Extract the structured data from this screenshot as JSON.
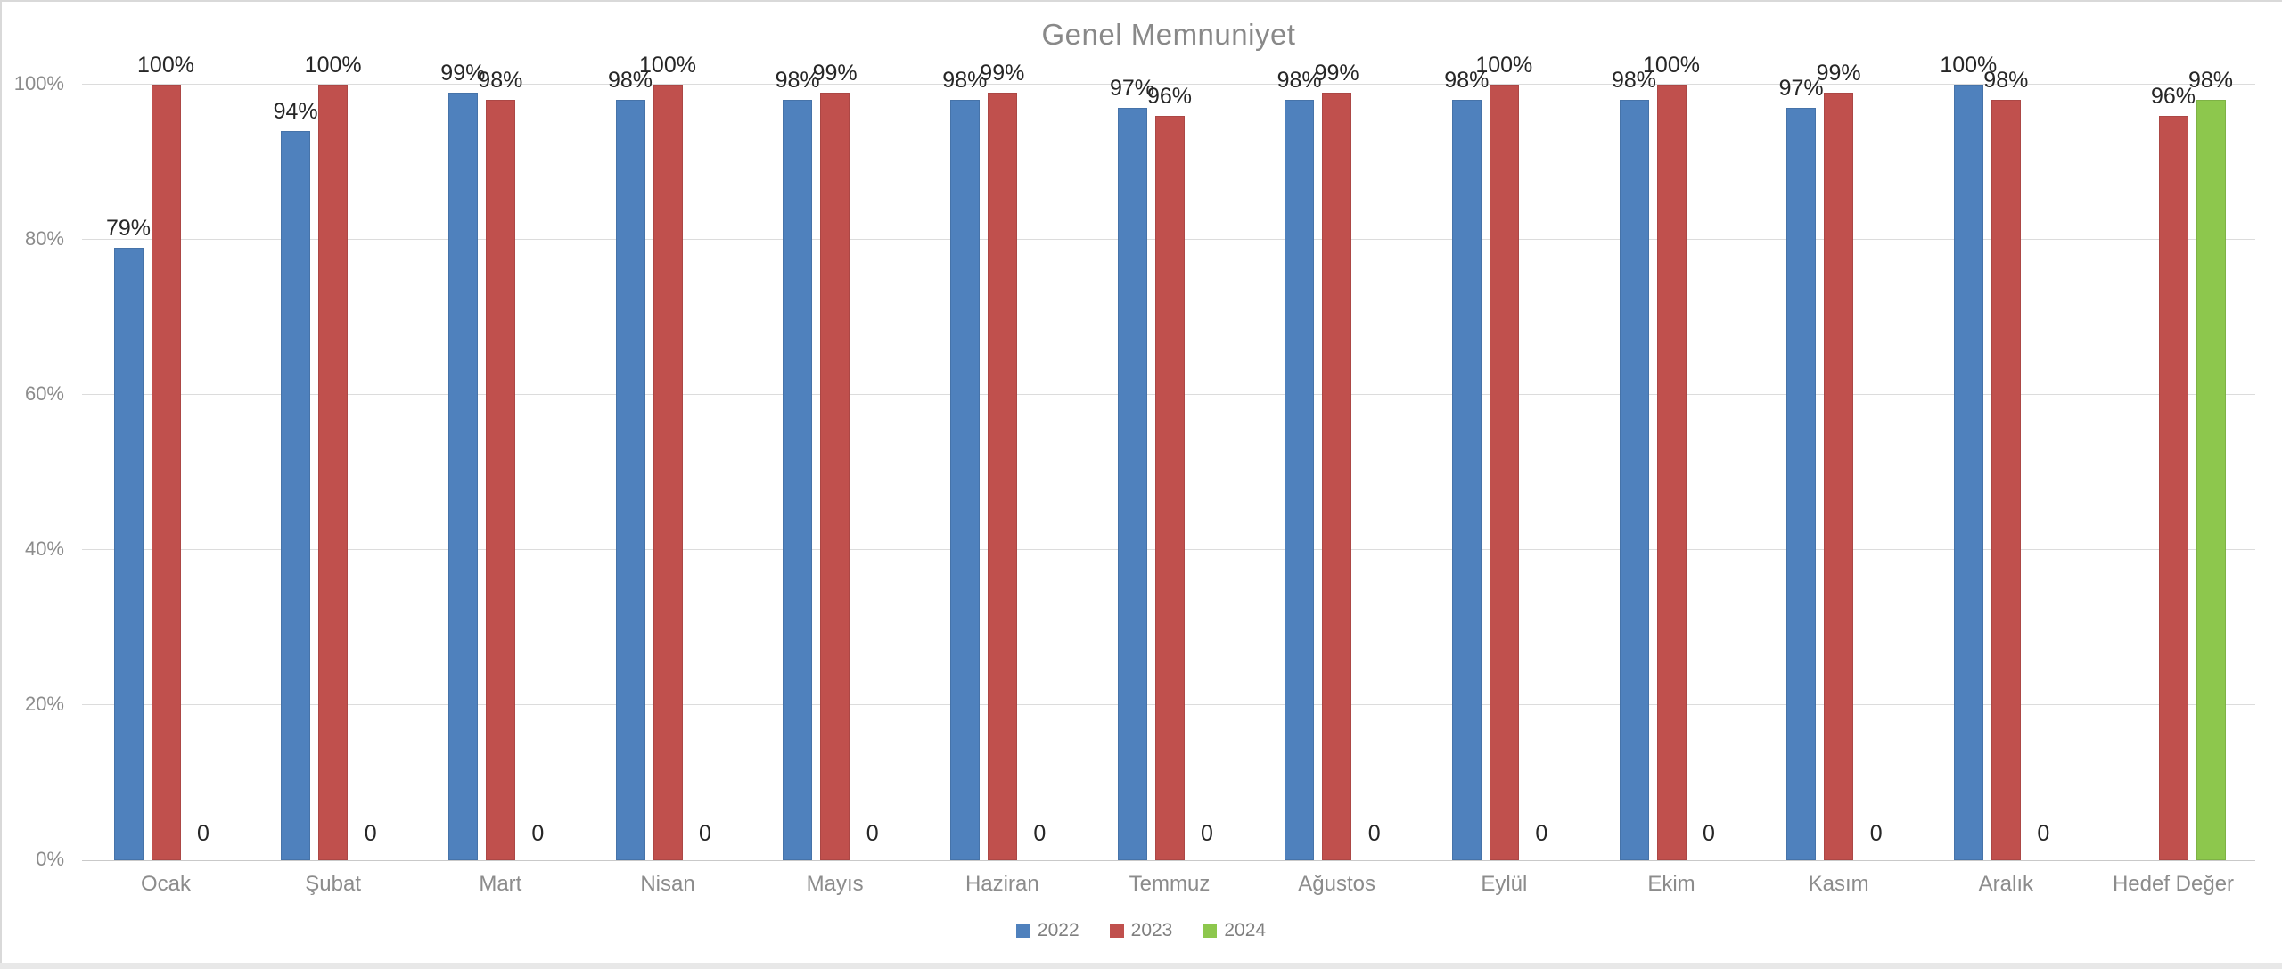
{
  "title": "Genel Memnuniyet",
  "chart_data": {
    "type": "bar",
    "title": "Genel Memnuniyet",
    "categories": [
      "Ocak",
      "Şubat",
      "Mart",
      "Nisan",
      "Mayıs",
      "Haziran",
      "Temmuz",
      "Ağustos",
      "Eylül",
      "Ekim",
      "Kasım",
      "Aralık",
      "Hedef Değer"
    ],
    "series": [
      {
        "name": "2022",
        "color": "#4F81BD",
        "values": [
          79,
          94,
          99,
          98,
          98,
          98,
          97,
          98,
          98,
          98,
          97,
          100,
          null
        ],
        "labels": [
          "79%",
          "94%",
          "99%",
          "98%",
          "98%",
          "98%",
          "97%",
          "98%",
          "98%",
          "98%",
          "97%",
          "100%",
          ""
        ]
      },
      {
        "name": "2023",
        "color": "#C0504D",
        "values": [
          100,
          100,
          98,
          100,
          99,
          99,
          96,
          99,
          100,
          100,
          99,
          98,
          96
        ],
        "labels": [
          "100%",
          "100%",
          "98%",
          "100%",
          "99%",
          "99%",
          "96%",
          "99%",
          "100%",
          "100%",
          "99%",
          "98%",
          "96%"
        ]
      },
      {
        "name": "2024",
        "color": "#8DC74D",
        "values": [
          0,
          0,
          0,
          0,
          0,
          0,
          0,
          0,
          0,
          0,
          0,
          0,
          98
        ],
        "labels": [
          "0",
          "0",
          "0",
          "0",
          "0",
          "0",
          "0",
          "0",
          "0",
          "0",
          "0",
          "0",
          "98%"
        ]
      }
    ],
    "ylabel": "",
    "xlabel": "",
    "y_ticks": [
      "0%",
      "20%",
      "40%",
      "60%",
      "80%",
      "100%"
    ],
    "ylim": [
      0,
      100
    ],
    "grid": true,
    "data_labels": true,
    "legend_position": "bottom-center",
    "title_color": "#898989",
    "axis_text_color": "#8c8c8c",
    "label_text_color": "#262626"
  }
}
